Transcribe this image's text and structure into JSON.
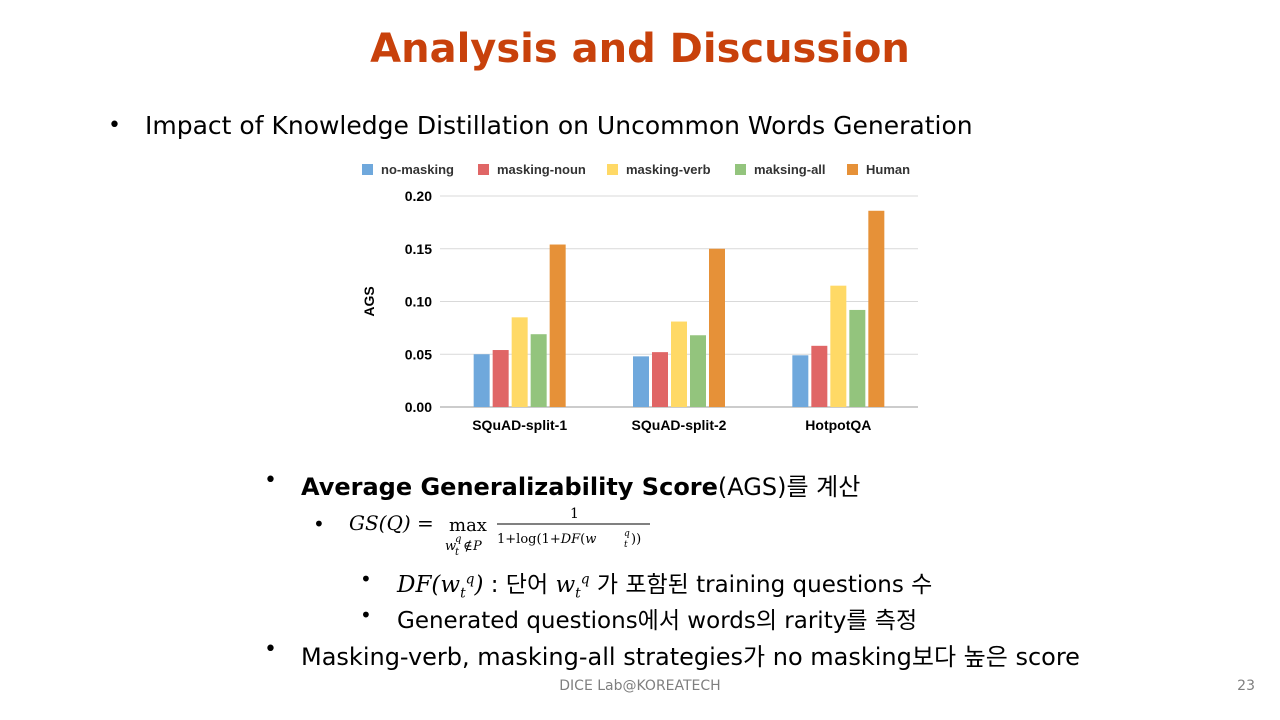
{
  "slide": {
    "title": "Analysis and Discussion",
    "bullet1": "Impact of Knowledge Distillation on Uncommon Words Generation",
    "bullet2_bold": "Average Generalizability Score",
    "bullet2_rest": "(AGS)를 계산",
    "formula_lhs": "GS(Q) = ",
    "formula_max": "max",
    "formula_sub": "w_t^q ∉ P",
    "formula_num": "1",
    "formula_den": "1+log(1+DF(w_t^q))",
    "df_symbol": "DF(w_t^q)",
    "df_text1": " : 단어 ",
    "df_var": "w_t^q",
    "df_text2": " 가 포함된 training questions 수",
    "bullet4": "Generated questions에서 words의 rarity를 측정",
    "bullet5": "Masking-verb, masking-all strategies가 no masking보다 높은 score",
    "footer": "DICE Lab@KOREATECH",
    "page_number": "23"
  },
  "chart_data": {
    "type": "bar",
    "title": "",
    "xlabel": "",
    "ylabel": "AGS",
    "ylim": [
      0,
      0.2
    ],
    "yticks": [
      "0.00",
      "0.05",
      "0.10",
      "0.15",
      "0.20"
    ],
    "grid": true,
    "legend_position": "top",
    "categories": [
      "SQuAD-split-1",
      "SQuAD-split-2",
      "HotpotQA"
    ],
    "series": [
      {
        "name": "no-masking",
        "color": "#6fa8dc",
        "values": [
          0.05,
          0.048,
          0.049
        ]
      },
      {
        "name": "masking-noun",
        "color": "#e06666",
        "values": [
          0.054,
          0.052,
          0.058
        ]
      },
      {
        "name": "masking-verb",
        "color": "#ffd966",
        "values": [
          0.085,
          0.081,
          0.115
        ]
      },
      {
        "name": "maksing-all",
        "color": "#93c47d",
        "values": [
          0.069,
          0.068,
          0.092
        ]
      },
      {
        "name": "Human",
        "color": "#e69138",
        "values": [
          0.154,
          0.15,
          0.186
        ]
      }
    ]
  }
}
